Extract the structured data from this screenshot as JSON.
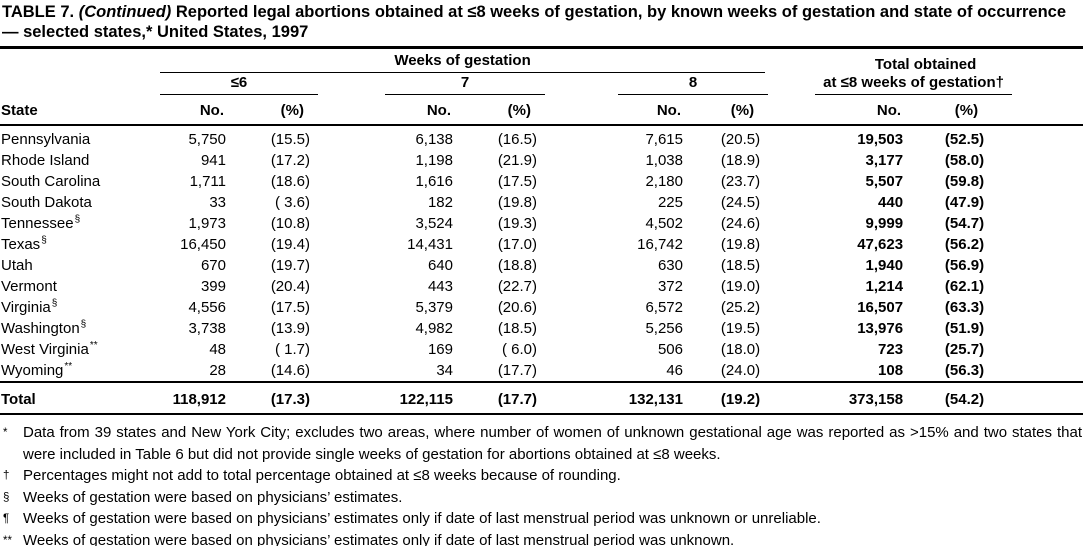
{
  "title": {
    "table_label": "TABLE 7.",
    "continued": "(Continued)",
    "text": "Reported legal abortions obtained at ≤8 weeks of gestation, by known weeks of gestation and state of occurrence— selected states,* United States, 1997"
  },
  "table": {
    "header": {
      "state": "State",
      "weeks_group": "Weeks of gestation",
      "col_le6": "≤6",
      "col_7": "7",
      "col_8": "8",
      "total_line1": "Total obtained",
      "total_line2": "at ≤8 weeks of gestation†",
      "no_label": "No.",
      "pct_label": "(%)"
    },
    "rows": [
      {
        "state": "Pennsylvania",
        "marker": "",
        "c1n": "5,750",
        "c1p": "(15.5)",
        "c2n": "6,138",
        "c2p": "(16.5)",
        "c3n": "7,615",
        "c3p": "(20.5)",
        "tn": "19,503",
        "tp": "(52.5)"
      },
      {
        "state": "Rhode Island",
        "marker": "",
        "c1n": "941",
        "c1p": "(17.2)",
        "c2n": "1,198",
        "c2p": "(21.9)",
        "c3n": "1,038",
        "c3p": "(18.9)",
        "tn": "3,177",
        "tp": "(58.0)"
      },
      {
        "state": "South Carolina",
        "marker": "",
        "c1n": "1,711",
        "c1p": "(18.6)",
        "c2n": "1,616",
        "c2p": "(17.5)",
        "c3n": "2,180",
        "c3p": "(23.7)",
        "tn": "5,507",
        "tp": "(59.8)"
      },
      {
        "state": "South Dakota",
        "marker": "",
        "c1n": "33",
        "c1p": "( 3.6)",
        "c2n": "182",
        "c2p": "(19.8)",
        "c3n": "225",
        "c3p": "(24.5)",
        "tn": "440",
        "tp": "(47.9)"
      },
      {
        "state": "Tennessee",
        "marker": "§",
        "c1n": "1,973",
        "c1p": "(10.8)",
        "c2n": "3,524",
        "c2p": "(19.3)",
        "c3n": "4,502",
        "c3p": "(24.6)",
        "tn": "9,999",
        "tp": "(54.7)"
      },
      {
        "state": "Texas",
        "marker": "§",
        "c1n": "16,450",
        "c1p": "(19.4)",
        "c2n": "14,431",
        "c2p": "(17.0)",
        "c3n": "16,742",
        "c3p": "(19.8)",
        "tn": "47,623",
        "tp": "(56.2)"
      },
      {
        "state": "Utah",
        "marker": "",
        "c1n": "670",
        "c1p": "(19.7)",
        "c2n": "640",
        "c2p": "(18.8)",
        "c3n": "630",
        "c3p": "(18.5)",
        "tn": "1,940",
        "tp": "(56.9)"
      },
      {
        "state": "Vermont",
        "marker": "",
        "c1n": "399",
        "c1p": "(20.4)",
        "c2n": "443",
        "c2p": "(22.7)",
        "c3n": "372",
        "c3p": "(19.0)",
        "tn": "1,214",
        "tp": "(62.1)"
      },
      {
        "state": "Virginia",
        "marker": "§",
        "c1n": "4,556",
        "c1p": "(17.5)",
        "c2n": "5,379",
        "c2p": "(20.6)",
        "c3n": "6,572",
        "c3p": "(25.2)",
        "tn": "16,507",
        "tp": "(63.3)"
      },
      {
        "state": "Washington",
        "marker": "§",
        "c1n": "3,738",
        "c1p": "(13.9)",
        "c2n": "4,982",
        "c2p": "(18.5)",
        "c3n": "5,256",
        "c3p": "(19.5)",
        "tn": "13,976",
        "tp": "(51.9)"
      },
      {
        "state": "West Virginia",
        "marker": "**",
        "c1n": "48",
        "c1p": "( 1.7)",
        "c2n": "169",
        "c2p": "( 6.0)",
        "c3n": "506",
        "c3p": "(18.0)",
        "tn": "723",
        "tp": "(25.7)"
      },
      {
        "state": "Wyoming",
        "marker": "**",
        "c1n": "28",
        "c1p": "(14.6)",
        "c2n": "34",
        "c2p": "(17.7)",
        "c3n": "46",
        "c3p": "(24.0)",
        "tn": "108",
        "tp": "(56.3)"
      }
    ],
    "total": {
      "state": "Total",
      "c1n": "118,912",
      "c1p": "(17.3)",
      "c2n": "122,115",
      "c2p": "(17.7)",
      "c3n": "132,131",
      "c3p": "(19.2)",
      "tn": "373,158",
      "tp": "(54.2)"
    }
  },
  "footnotes": [
    {
      "marker": "*",
      "text": "Data from 39 states and New York City; excludes two areas, where number of women of unknown gestational age was reported as >15% and two states that were included in Table 6 but did not provide single weeks of gestation for abortions obtained at ≤8 weeks."
    },
    {
      "marker": "†",
      "text": "Percentages might not add to total percentage obtained at ≤8 weeks because of rounding."
    },
    {
      "marker": "§",
      "text": "Weeks of gestation were based on physicians’ estimates."
    },
    {
      "marker": "¶",
      "text": "Weeks of gestation were based on physicians’ estimates only if date of last menstrual period was unknown or unreliable."
    },
    {
      "marker": "**",
      "text": "Weeks of gestation were based on physicians’ estimates only if date of last menstrual period was unknown."
    }
  ]
}
